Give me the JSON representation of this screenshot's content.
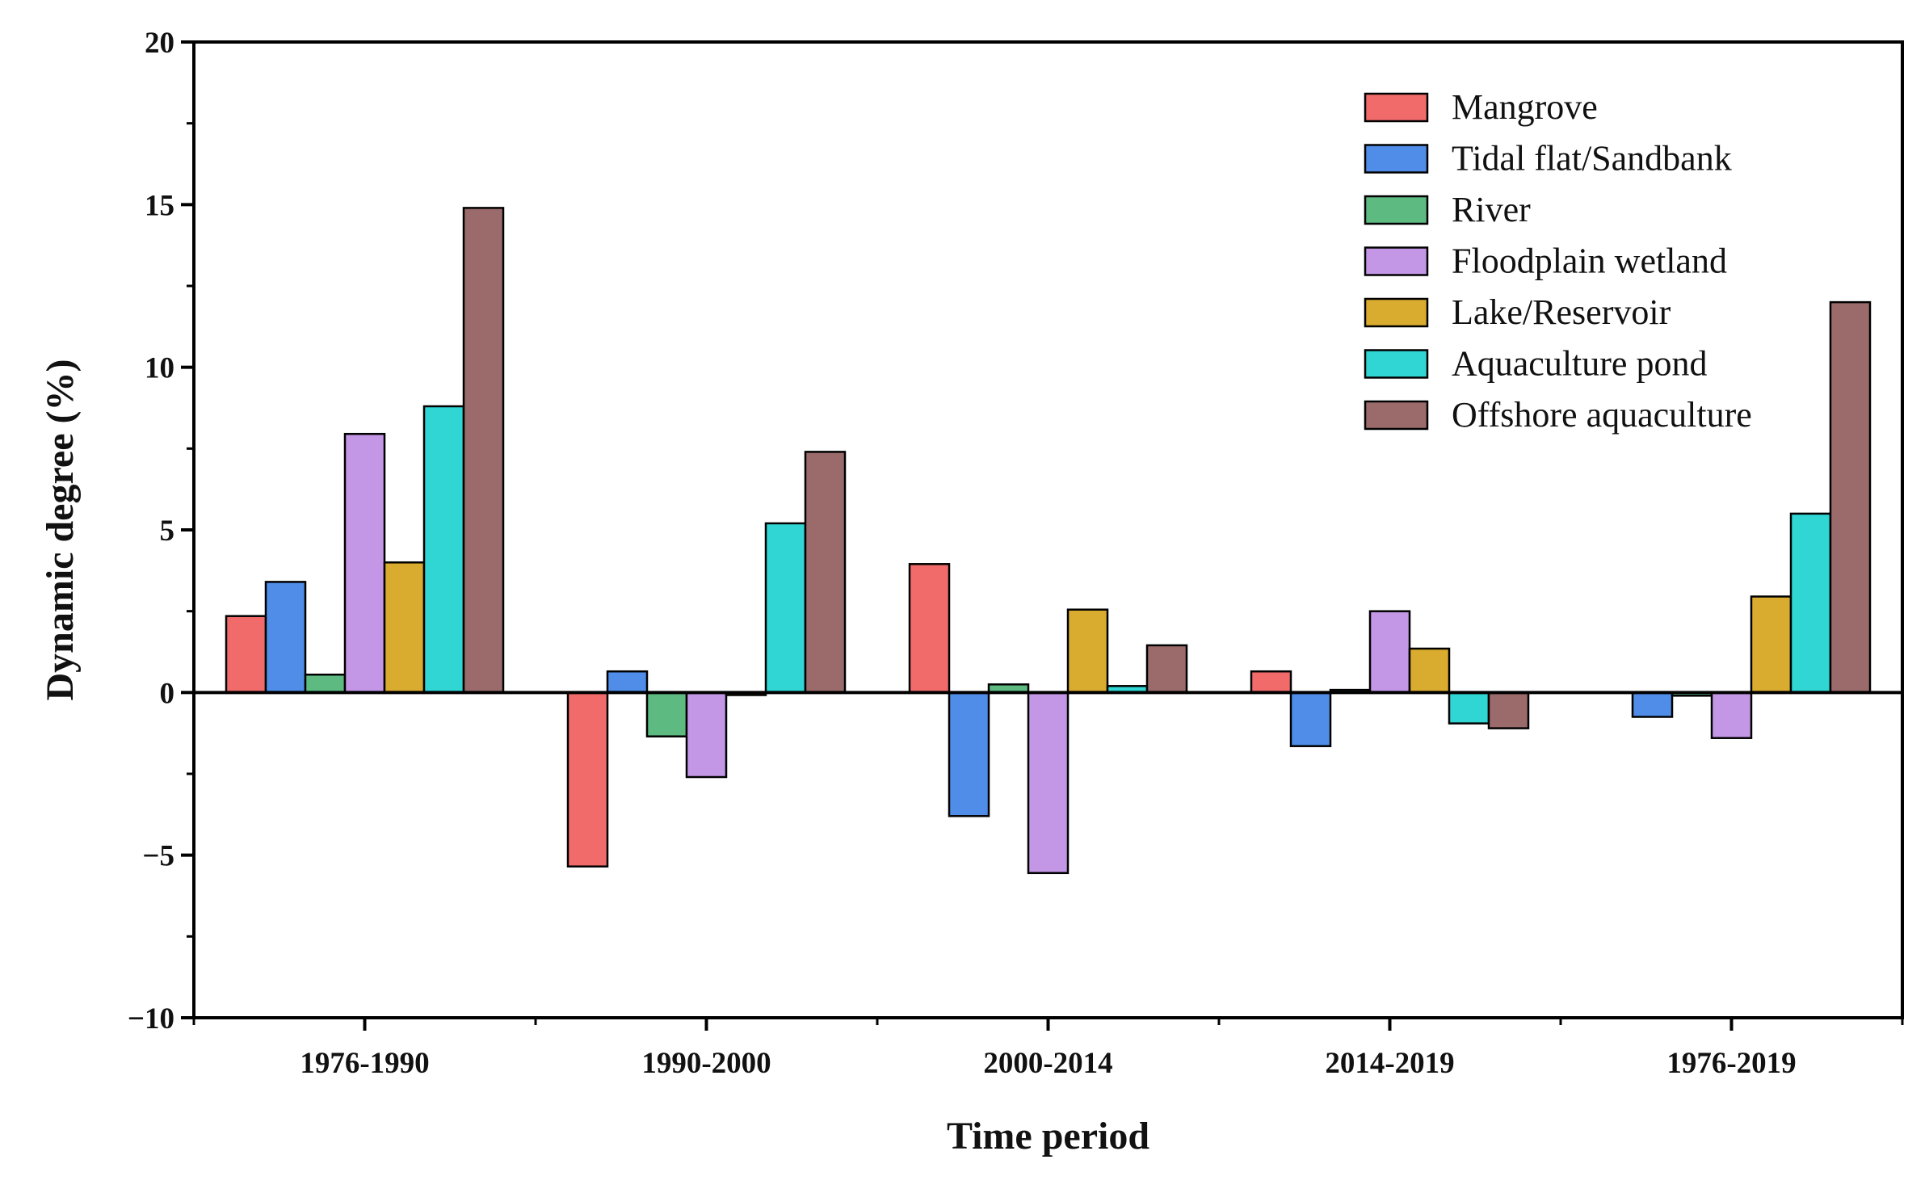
{
  "chart_data": {
    "type": "bar",
    "title": "",
    "xlabel": "Time period",
    "ylabel": "Dynamic degree (%)",
    "ylim": [
      -10,
      20
    ],
    "yticks": [
      -10,
      -5,
      0,
      5,
      10,
      15,
      20
    ],
    "ytick_labels": [
      "−10",
      "−5",
      "0",
      "5",
      "10",
      "15",
      "20"
    ],
    "grid": false,
    "legend_position": "top-right",
    "categories": [
      "1976-1990",
      "1990-2000",
      "2000-2014",
      "2014-2019",
      "1976-2019"
    ],
    "series": [
      {
        "name": "Mangrove",
        "color": "#f26b6b",
        "values": [
          2.35,
          -5.35,
          3.95,
          0.65,
          0.0
        ]
      },
      {
        "name": "Tidal flat/Sandbank",
        "color": "#4f8de8",
        "values": [
          3.4,
          0.65,
          -3.8,
          -1.65,
          -0.75
        ]
      },
      {
        "name": "River",
        "color": "#5dbb82",
        "values": [
          0.55,
          -1.35,
          0.25,
          0.08,
          -0.1
        ]
      },
      {
        "name": "Floodplain wetland",
        "color": "#c497e6",
        "values": [
          7.95,
          -2.6,
          -5.55,
          2.5,
          -1.4
        ]
      },
      {
        "name": "Lake/Reservoir",
        "color": "#d9ab2e",
        "values": [
          4.0,
          -0.08,
          2.55,
          1.35,
          2.95
        ]
      },
      {
        "name": "Aquaculture pond",
        "color": "#2fd6d3",
        "values": [
          8.8,
          5.2,
          0.2,
          -0.95,
          5.5
        ]
      },
      {
        "name": "Offshore aquaculture",
        "color": "#9b6b6b",
        "values": [
          14.9,
          7.4,
          1.45,
          -1.1,
          12.0
        ]
      }
    ]
  }
}
